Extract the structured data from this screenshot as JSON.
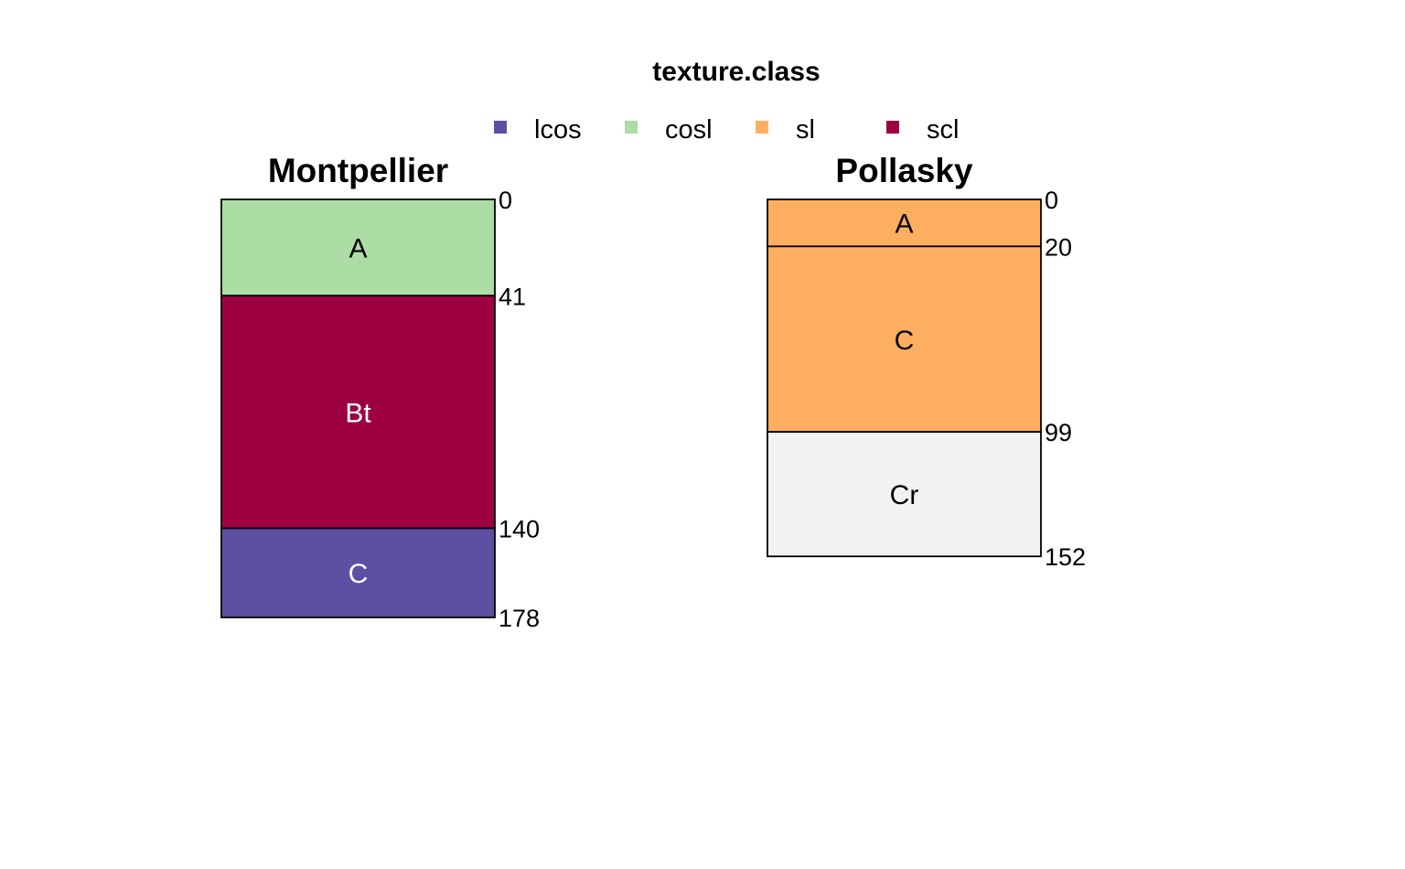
{
  "chart_data": {
    "type": "soil-profile",
    "legend": {
      "title": "texture.class",
      "placement": "top-center",
      "entries": [
        {
          "label": "lcos",
          "color": "#5E4FA2"
        },
        {
          "label": "cosl",
          "color": "#ABDDA4"
        },
        {
          "label": "sl",
          "color": "#FDAE61"
        },
        {
          "label": "scl",
          "color": "#9E0142"
        }
      ]
    },
    "depth_scale_max": 178,
    "profiles": [
      {
        "name": "Montpellier",
        "horizons": [
          {
            "name": "A",
            "top": 0,
            "bottom": 41,
            "texture": "cosl",
            "color": "#ABDDA4",
            "label_color": "#000000"
          },
          {
            "name": "Bt",
            "top": 41,
            "bottom": 140,
            "texture": "scl",
            "color": "#9E0142",
            "label_color": "#ffffff"
          },
          {
            "name": "C",
            "top": 140,
            "bottom": 178,
            "texture": "lcos",
            "color": "#5E4FA2",
            "label_color": "#ffffff"
          }
        ],
        "depth_labels": [
          "0",
          "41",
          "140",
          "178"
        ]
      },
      {
        "name": "Pollasky",
        "horizons": [
          {
            "name": "A",
            "top": 0,
            "bottom": 20,
            "texture": "sl",
            "color": "#FDAE61",
            "label_color": "#000000"
          },
          {
            "name": "C",
            "top": 20,
            "bottom": 99,
            "texture": "sl",
            "color": "#FDAE61",
            "label_color": "#000000"
          },
          {
            "name": "Cr",
            "top": 99,
            "bottom": 152,
            "texture": null,
            "color": "#F2F2F2",
            "label_color": "#000000"
          }
        ],
        "depth_labels": [
          "0",
          "20",
          "99",
          "152"
        ]
      }
    ]
  }
}
